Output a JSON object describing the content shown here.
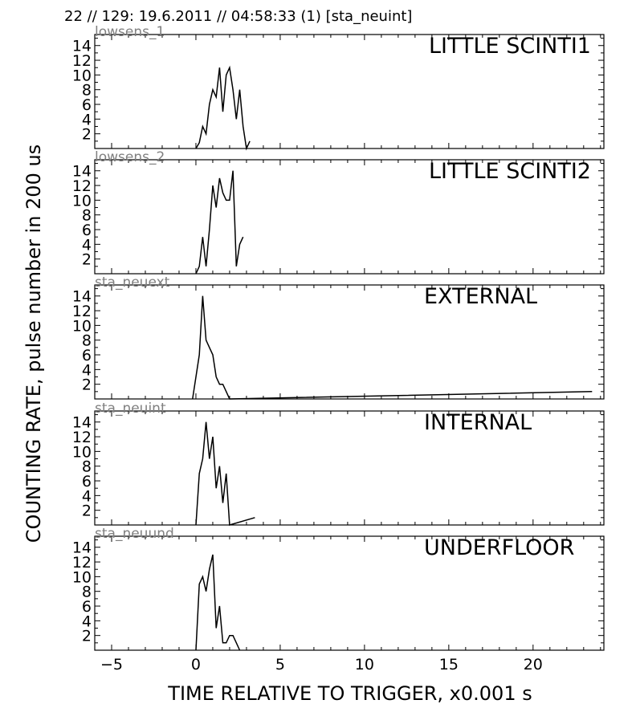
{
  "header": {
    "title": "22 // 129:   19.6.2011 // 04:58:33 (1)  [sta_neuint]"
  },
  "chart_data": {
    "type": "line",
    "xlabel": "TIME RELATIVE TO TRIGGER,   x0.001 s",
    "ylabel": "COUNTING RATE,   pulse number in 200 us",
    "xlim": [
      -6,
      24.2
    ],
    "ylim": [
      0,
      15.5
    ],
    "xticks": [
      -5,
      0,
      5,
      10,
      15,
      20
    ],
    "yticks": [
      2,
      4,
      6,
      8,
      10,
      12,
      14
    ],
    "line_color": "#000000",
    "panels": [
      {
        "station": "lowsens_1",
        "label": "LITTLE SCINTI1",
        "x": [
          0,
          0.2,
          0.4,
          0.6,
          0.8,
          1.0,
          1.2,
          1.4,
          1.6,
          1.8,
          2.0,
          2.2,
          2.4,
          2.6,
          2.8,
          3.0,
          3.2
        ],
        "y": [
          0,
          0.8,
          3,
          2,
          6,
          8,
          7,
          11,
          5,
          10,
          11,
          8,
          4,
          8,
          3,
          0,
          1
        ]
      },
      {
        "station": "lowsens_2",
        "label": "LITTLE SCINTI2",
        "x": [
          0,
          0.2,
          0.4,
          0.6,
          0.8,
          1.0,
          1.2,
          1.4,
          1.6,
          1.8,
          2.0,
          2.2,
          2.4,
          2.6,
          2.8
        ],
        "y": [
          0,
          1,
          5,
          1,
          6,
          12,
          9,
          13,
          11,
          10,
          10,
          14,
          1,
          4,
          5
        ]
      },
      {
        "station": "sta_neuext",
        "label": "EXTERNAL",
        "x": [
          -0.2,
          0.2,
          0.4,
          0.6,
          0.8,
          1.0,
          1.2,
          1.4,
          1.6,
          1.8,
          2.0,
          23.5
        ],
        "y": [
          0,
          6,
          14,
          8,
          7,
          6,
          3,
          2,
          2,
          1,
          0,
          1
        ]
      },
      {
        "station": "sta_neuint",
        "label": "INTERNAL",
        "x": [
          0,
          0.2,
          0.4,
          0.6,
          0.8,
          1.0,
          1.2,
          1.4,
          1.6,
          1.8,
          2.0,
          3.5
        ],
        "y": [
          0,
          7,
          9,
          14,
          9,
          12,
          5,
          8,
          3,
          7,
          0,
          1
        ]
      },
      {
        "station": "sta_neuund",
        "label": "UNDERFLOOR",
        "x": [
          0,
          0.2,
          0.4,
          0.6,
          0.8,
          1.0,
          1.2,
          1.4,
          1.6,
          1.8,
          2.0,
          2.2,
          2.4,
          2.6
        ],
        "y": [
          0,
          9,
          10,
          8,
          11,
          13,
          3,
          6,
          1,
          1,
          2,
          2,
          1,
          0
        ]
      }
    ]
  }
}
